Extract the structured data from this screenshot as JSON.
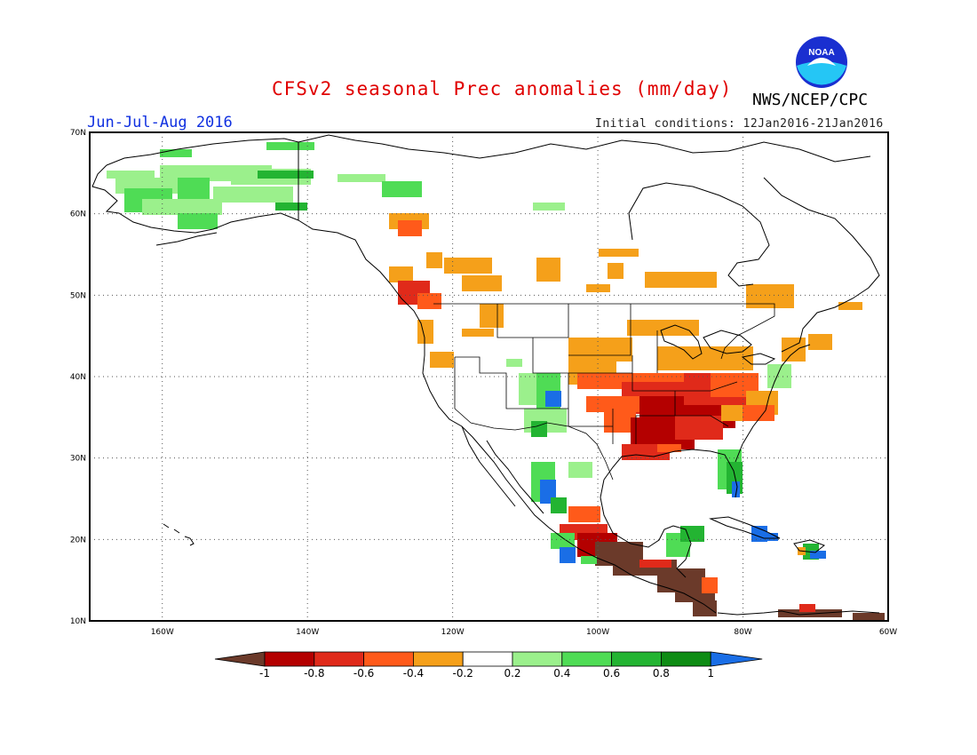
{
  "header": {
    "title": "CFSv2 seasonal Prec anomalies (mm/day)",
    "season": "Jun-Jul-Aug 2016",
    "initial_conditions": "Initial conditions: 12Jan2016-21Jan2016",
    "agency": "NWS/NCEP/CPC",
    "logo_text": "NOAA"
  },
  "axes": {
    "lat_labels": [
      "70N",
      "60N",
      "50N",
      "40N",
      "30N",
      "20N",
      "10N"
    ],
    "lon_labels": [
      "160W",
      "140W",
      "120W",
      "100W",
      "80W",
      "60W"
    ]
  },
  "colorbar": {
    "labels": [
      "-1",
      "-0.8",
      "-0.6",
      "-0.4",
      "-0.2",
      "0.2",
      "0.4",
      "0.6",
      "0.8",
      "1"
    ],
    "colors": [
      "#6b3a2a",
      "#b40000",
      "#e02a1a",
      "#ff5a1a",
      "#f5a01a",
      "#ffffff",
      "#9bf08c",
      "#4fdc55",
      "#23b432",
      "#0e8c14",
      "#1a6ee6"
    ]
  },
  "map": {
    "projection": "lat-lon",
    "lon_range": [
      "170W",
      "60W"
    ],
    "lat_range": [
      "10N",
      "70N"
    ],
    "grid": true,
    "colors": {
      "dark_brown": "#6b3a2a",
      "dark_red": "#b40000",
      "red": "#e02a1a",
      "red_orange": "#ff5a1a",
      "orange": "#f5a01a",
      "light_green": "#9bf08c",
      "green": "#4fdc55",
      "mid_green": "#23b432",
      "dark_green": "#0e8c14",
      "blue": "#1a6ee6"
    }
  }
}
